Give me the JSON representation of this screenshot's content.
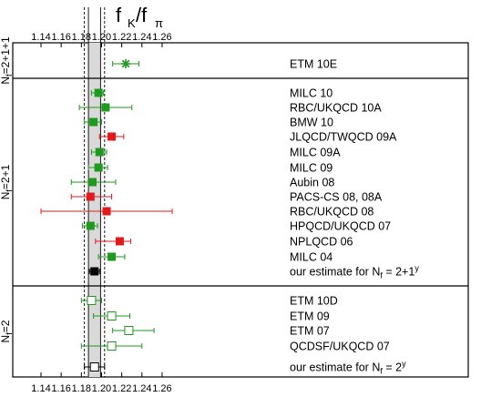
{
  "chart_data": {
    "type": "scatter",
    "title_main": "f",
    "title_sub1": "K",
    "title_mid": "/f",
    "title_sub2": "π",
    "xlim": [
      1.12,
      1.3
    ],
    "ticks": [
      1.14,
      1.16,
      1.18,
      1.2,
      1.22,
      1.24,
      1.26
    ],
    "tick_labels": [
      "1.14",
      "1.16",
      "1.18",
      "1.20",
      "1.22",
      "1.24",
      "1.26"
    ],
    "band": {
      "center": 1.193,
      "lo": 1.187,
      "hi": 1.199,
      "outer_lo": 1.183,
      "outer_hi": 1.203
    },
    "colors": {
      "green": "#1f9a1f",
      "red": "#e31a1c",
      "black": "#000000",
      "band": "#d9d9d9"
    },
    "groups": [
      {
        "label_main": "N",
        "label_sub": "f",
        "label_rest": "=2+1+1",
        "rows": [
          {
            "label": "ETM 10E",
            "value": 1.224,
            "err_lo": 1.211,
            "err_hi": 1.237,
            "marker": "star",
            "color": "green"
          }
        ]
      },
      {
        "label_main": "N",
        "label_sub": "f",
        "label_rest": "=2+1",
        "rows": [
          {
            "label": "MILC 10",
            "value": 1.197,
            "err_lo": 1.19,
            "err_hi": 1.202,
            "marker": "square",
            "color": "green"
          },
          {
            "label": "RBC/UKQCD 10A",
            "value": 1.204,
            "err_lo": 1.178,
            "err_hi": 1.23,
            "marker": "square",
            "color": "green"
          },
          {
            "label": "BMW 10",
            "value": 1.192,
            "err_lo": 1.183,
            "err_hi": 1.2,
            "marker": "square",
            "color": "green"
          },
          {
            "label": "JLQCD/TWQCD 09A",
            "value": 1.21,
            "err_lo": 1.198,
            "err_hi": 1.222,
            "marker": "square",
            "color": "red"
          },
          {
            "label": "MILC 09A",
            "value": 1.198,
            "err_lo": 1.19,
            "err_hi": 1.205,
            "marker": "square",
            "color": "green"
          },
          {
            "label": "MILC 09",
            "value": 1.197,
            "err_lo": 1.187,
            "err_hi": 1.206,
            "marker": "square",
            "color": "green"
          },
          {
            "label": "Aubin 08",
            "value": 1.191,
            "err_lo": 1.17,
            "err_hi": 1.214,
            "marker": "square",
            "color": "green"
          },
          {
            "label": "PACS-CS 08, 08A",
            "value": 1.189,
            "err_lo": 1.17,
            "err_hi": 1.21,
            "marker": "square",
            "color": "red"
          },
          {
            "label": "RBC/UKQCD 08",
            "value": 1.205,
            "err_lo": 1.14,
            "err_hi": 1.27,
            "marker": "square",
            "color": "red"
          },
          {
            "label": "HPQCD/UKQCD 07",
            "value": 1.189,
            "err_lo": 1.181,
            "err_hi": 1.196,
            "marker": "square",
            "color": "green"
          },
          {
            "label": "NPLQCD 06",
            "value": 1.218,
            "err_lo": 1.194,
            "err_hi": 1.229,
            "marker": "square",
            "color": "red"
          },
          {
            "label": "MILC 04",
            "value": 1.21,
            "err_lo": 1.197,
            "err_hi": 1.223,
            "marker": "square",
            "color": "green"
          },
          {
            "label_main": "our estimate for N",
            "label_sub": "f",
            "label_rest": " = 2+1",
            "label_sup": "y",
            "value": 1.193,
            "err_lo": 1.188,
            "err_hi": 1.198,
            "marker": "square",
            "color": "black"
          }
        ]
      },
      {
        "label_main": "N",
        "label_sub": "f",
        "label_rest": "=2",
        "rows": [
          {
            "label": "ETM 10D",
            "value": 1.19,
            "err_lo": 1.18,
            "err_hi": 1.2,
            "marker": "open-square",
            "color": "green"
          },
          {
            "label": "ETM 09",
            "value": 1.21,
            "err_lo": 1.192,
            "err_hi": 1.228,
            "marker": "open-square",
            "color": "green"
          },
          {
            "label": "ETM 07",
            "value": 1.227,
            "err_lo": 1.211,
            "err_hi": 1.252,
            "marker": "open-square",
            "color": "green"
          },
          {
            "label": "QCDSF/UKQCD 07",
            "value": 1.21,
            "err_lo": 1.18,
            "err_hi": 1.24,
            "marker": "open-square",
            "color": "green"
          },
          {
            "label_main": "our estimate for N",
            "label_sub": "f",
            "label_rest": " = 2",
            "label_sup": "y",
            "value": 1.193,
            "err_lo": 1.183,
            "err_hi": 1.203,
            "marker": "open-square",
            "color": "black"
          }
        ]
      }
    ]
  }
}
